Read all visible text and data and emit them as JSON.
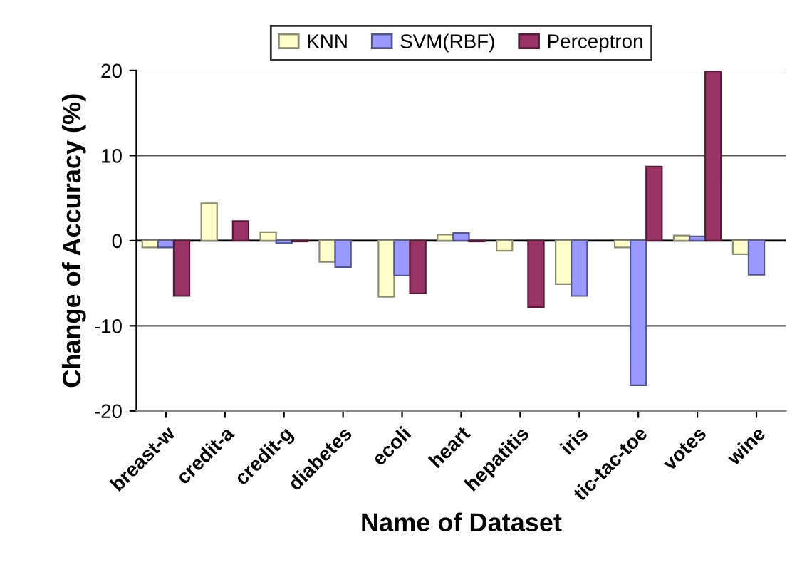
{
  "chart_data": {
    "type": "bar",
    "xlabel": "Name of Dataset",
    "ylabel": "Change of Accuracy (%)",
    "categories": [
      "breast-w",
      "credit-a",
      "credit-g",
      "diabetes",
      "ecoli",
      "heart",
      "hepatitis",
      "iris",
      "tic-tac-toe",
      "votes",
      "wine"
    ],
    "series": [
      {
        "name": "KNN",
        "color": "#ffffcc",
        "values": [
          -0.8,
          4.4,
          1.0,
          -2.5,
          -6.6,
          0.7,
          -1.2,
          -5.1,
          -0.8,
          0.6,
          -1.6
        ]
      },
      {
        "name": "SVM(RBF)",
        "color": "#9999ff",
        "values": [
          -0.8,
          null,
          -0.3,
          -3.1,
          -4.1,
          0.9,
          null,
          -6.5,
          -17.0,
          0.5,
          -4.0
        ]
      },
      {
        "name": "Perceptron",
        "color": "#993366",
        "values": [
          -6.5,
          2.3,
          -0.1,
          null,
          -6.2,
          -0.1,
          -7.8,
          null,
          8.7,
          19.9,
          null
        ]
      }
    ],
    "ylim": [
      -20,
      20
    ],
    "yticks": [
      -20,
      -10,
      0,
      10,
      20
    ],
    "grid": "y",
    "legend": "top"
  }
}
